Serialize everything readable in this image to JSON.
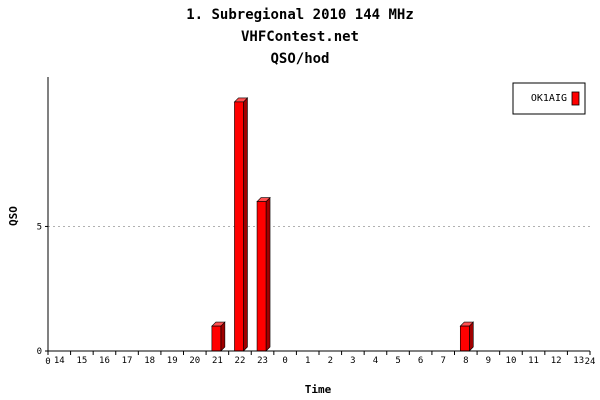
{
  "titles": [
    "1. Subregional 2010 144 MHz",
    "VHFContest.net",
    "QSO/hod"
  ],
  "colors": {
    "bar_front": "#ff0000",
    "bar_side": "#a00000",
    "bar_top": "#ff5050",
    "grid": "#b0b0b0",
    "axis": "#000000"
  },
  "chart_data": {
    "type": "bar",
    "title": "1. Subregional 2010 144 MHz",
    "subtitle": "VHFContest.net",
    "subtitle2": "QSO/hod",
    "xlabel": "Time",
    "ylabel": "QSO",
    "x_axis_start_label": "0",
    "x_axis_end_label": "24",
    "categories": [
      "14",
      "15",
      "16",
      "17",
      "18",
      "19",
      "20",
      "21",
      "22",
      "23",
      "0",
      "1",
      "2",
      "3",
      "4",
      "5",
      "6",
      "7",
      "8",
      "9",
      "10",
      "11",
      "12",
      "13"
    ],
    "series": [
      {
        "name": "OK1AIG",
        "values": [
          0,
          0,
          0,
          0,
          0,
          0,
          0,
          1,
          10,
          6,
          0,
          0,
          0,
          0,
          0,
          0,
          0,
          0,
          1,
          0,
          0,
          0,
          0,
          0
        ]
      }
    ],
    "ylim": [
      0,
      11
    ],
    "yticks": [
      0,
      5
    ],
    "grid": "horizontal dashed",
    "legend_position": "top-right"
  }
}
